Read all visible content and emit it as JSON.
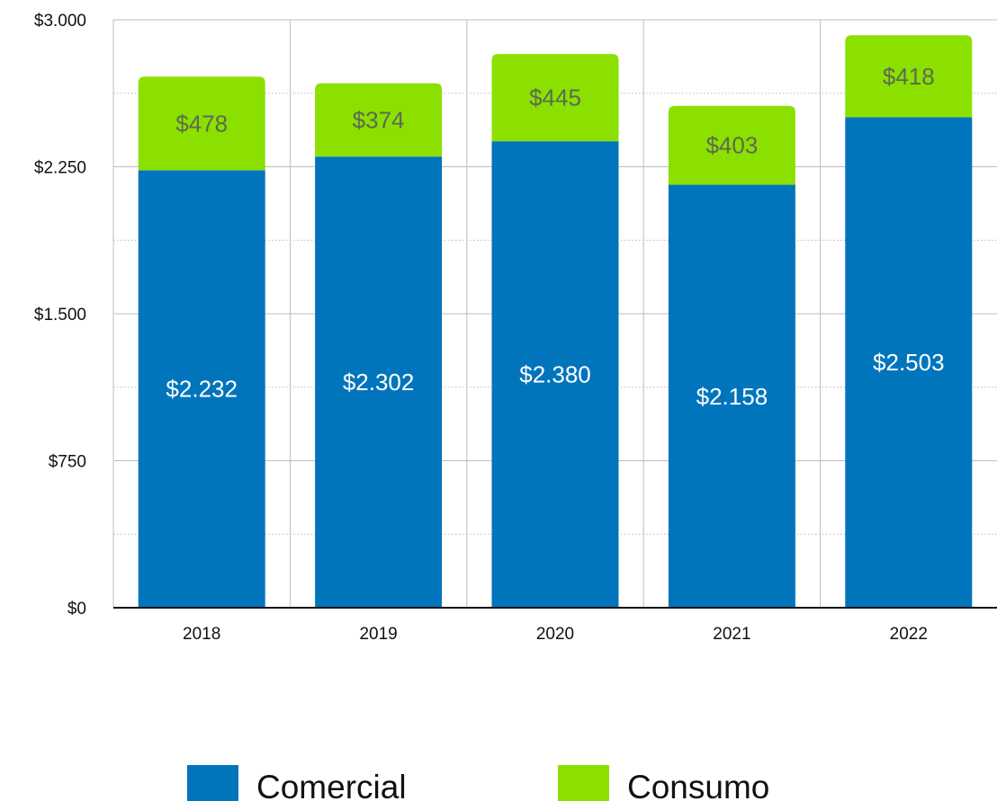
{
  "chart_data": {
    "type": "bar",
    "stacked": true,
    "categories": [
      "2018",
      "2019",
      "2020",
      "2021",
      "2022"
    ],
    "series": [
      {
        "name": "Comercial",
        "color": "#0175bc",
        "values": [
          2232,
          2302,
          2380,
          2158,
          2503
        ],
        "labels": [
          "$2.232",
          "$2.302",
          "$2.380",
          "$2.158",
          "$2.503"
        ]
      },
      {
        "name": "Consumo",
        "color": "#8ce000",
        "values": [
          478,
          374,
          445,
          403,
          418
        ],
        "labels": [
          "$478",
          "$374",
          "$445",
          "$403",
          "$418"
        ]
      }
    ],
    "ylim": [
      0,
      3000
    ],
    "y_ticks": [
      0,
      750,
      1500,
      2250,
      3000
    ],
    "y_tick_labels": [
      "$0",
      "$750",
      "$1.500",
      "$2.250",
      "$3.000"
    ],
    "y_minor_gridlines": [
      375,
      1125,
      1875,
      2625
    ],
    "grid": true,
    "legend": "bottom"
  }
}
